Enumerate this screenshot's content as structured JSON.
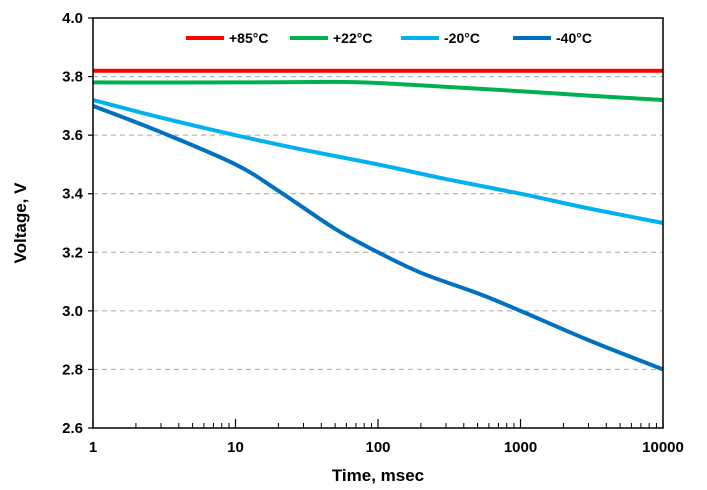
{
  "chart_data": {
    "type": "line",
    "xlabel": "Time, msec",
    "ylabel": "Voltage, V",
    "x_scale": "log",
    "xlim": [
      1,
      10000
    ],
    "ylim": [
      2.6,
      4.0
    ],
    "x_ticks": [
      1,
      10,
      100,
      1000,
      10000
    ],
    "x_tick_labels": [
      "1",
      "10",
      "100",
      "1000",
      "10000"
    ],
    "y_ticks": [
      2.6,
      2.8,
      3.0,
      3.2,
      3.4,
      3.6,
      3.8,
      4.0
    ],
    "y_tick_labels": [
      "2.6",
      "2.8",
      "3.0",
      "3.2",
      "3.4",
      "3.6",
      "3.8",
      "4.0"
    ],
    "grid": "horizontal dashed",
    "legend_position": "top",
    "series": [
      {
        "name": "+85°C",
        "color": "#ff0000",
        "x": [
          1,
          10,
          100,
          1000,
          10000
        ],
        "y": [
          3.82,
          3.82,
          3.82,
          3.82,
          3.82
        ]
      },
      {
        "name": "+22°C",
        "color": "#00b050",
        "x": [
          1,
          10,
          50,
          100,
          300,
          1000,
          3000,
          10000
        ],
        "y": [
          3.78,
          3.78,
          3.782,
          3.778,
          3.765,
          3.75,
          3.735,
          3.72
        ]
      },
      {
        "name": "-20°C",
        "color": "#00b0f0",
        "x": [
          1,
          3,
          10,
          30,
          100,
          300,
          1000,
          3000,
          10000
        ],
        "y": [
          3.72,
          3.66,
          3.6,
          3.55,
          3.5,
          3.45,
          3.4,
          3.35,
          3.3
        ]
      },
      {
        "name": "-40°C",
        "color": "#0070c0",
        "x": [
          1,
          3,
          10,
          20,
          50,
          100,
          200,
          500,
          1000,
          3000,
          10000
        ],
        "y": [
          3.7,
          3.61,
          3.5,
          3.41,
          3.28,
          3.2,
          3.13,
          3.06,
          3.0,
          2.9,
          2.8
        ]
      }
    ]
  }
}
